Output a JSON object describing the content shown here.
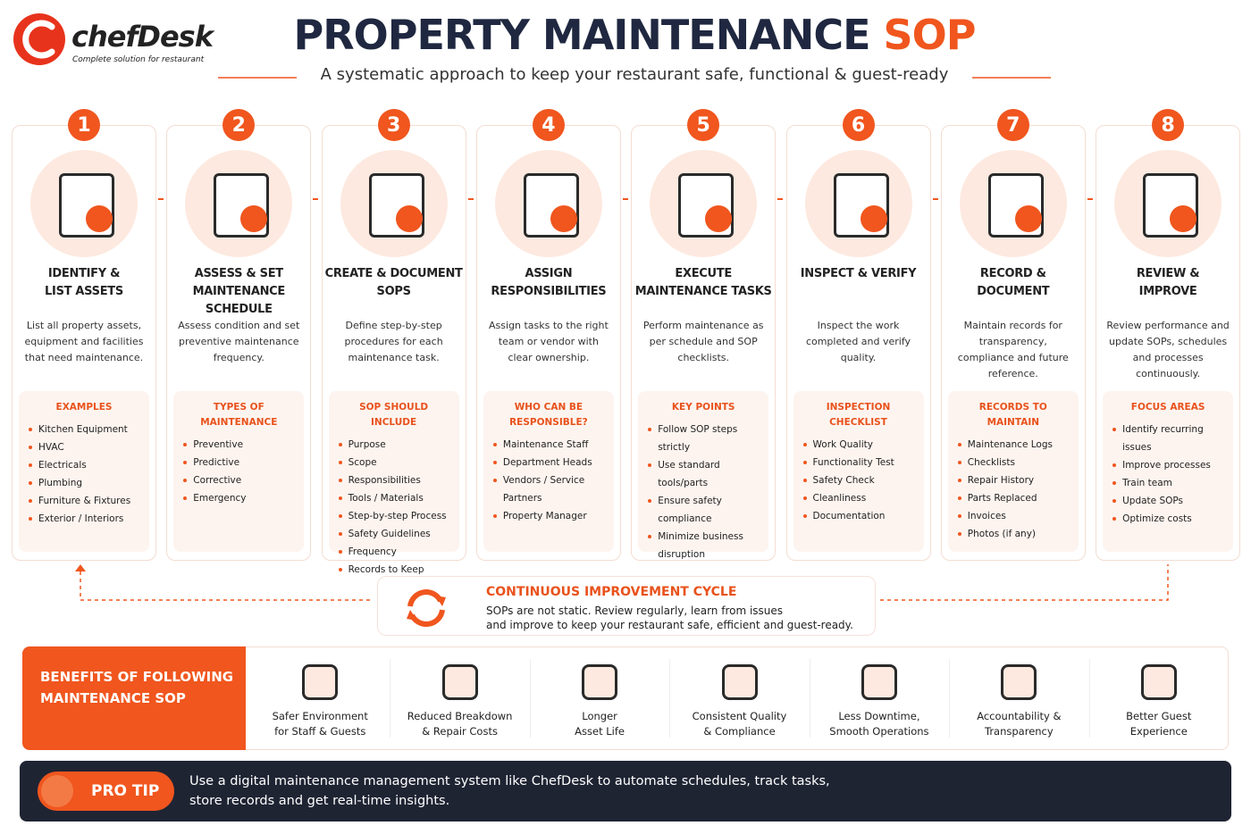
{
  "header": {
    "brand": "chefDesk",
    "tagline": "Complete solution for restaurant",
    "title": "PROPERTY MAINTENANCE",
    "title_accent": "SOP",
    "subtitle": "A systematic approach to keep your restaurant safe, functional & guest-ready"
  },
  "steps": [
    {
      "number": 1,
      "title": [
        "IDENTIFY &",
        "LIST ASSETS"
      ],
      "description": "List all property assets, equipment and facilities that need maintenance.",
      "box_title": "EXAMPLES",
      "items": [
        "Kitchen Equipment",
        "HVAC",
        "Electricals",
        "Plumbing",
        "Furniture & Fixtures",
        "Exterior / Interiors"
      ]
    },
    {
      "number": 2,
      "title": [
        "ASSESS & SET",
        "MAINTENANCE SCHEDULE"
      ],
      "description": "Assess condition and set preventive maintenance frequency.",
      "box_title": "TYPES OF MAINTENANCE",
      "items": [
        "Preventive",
        "Predictive",
        "Corrective",
        "Emergency"
      ]
    },
    {
      "number": 3,
      "title": [
        "CREATE & DOCUMENT",
        "SOPS"
      ],
      "description": "Define step-by-step procedures for each maintenance task.",
      "box_title": "SOP SHOULD INCLUDE",
      "items": [
        "Purpose",
        "Scope",
        "Responsibilities",
        "Tools / Materials",
        "Step-by-step Process",
        "Safety Guidelines",
        "Frequency",
        "Records to Keep"
      ]
    },
    {
      "number": 4,
      "title": [
        "ASSIGN",
        "RESPONSIBILITIES"
      ],
      "description": "Assign tasks to the right team or vendor with clear ownership.",
      "box_title": "WHO CAN BE RESPONSIBLE?",
      "items": [
        "Maintenance Staff",
        "Department Heads",
        "Vendors / Service Partners",
        "Property Manager"
      ]
    },
    {
      "number": 5,
      "title": [
        "EXECUTE",
        "MAINTENANCE TASKS"
      ],
      "description": "Perform maintenance as per schedule and SOP checklists.",
      "box_title": "KEY POINTS",
      "items": [
        "Follow SOP steps strictly",
        "Use standard tools/parts",
        "Ensure safety compliance",
        "Minimize business disruption"
      ]
    },
    {
      "number": 6,
      "title": [
        "INSPECT & VERIFY"
      ],
      "description": "Inspect the work completed and verify quality.",
      "box_title": "INSPECTION CHECKLIST",
      "items": [
        "Work Quality",
        "Functionality Test",
        "Safety Check",
        "Cleanliness",
        "Documentation"
      ]
    },
    {
      "number": 7,
      "title": [
        "RECORD &",
        "DOCUMENT"
      ],
      "description": "Maintain records for transparency, compliance and future reference.",
      "box_title": "RECORDS TO MAINTAIN",
      "items": [
        "Maintenance Logs",
        "Checklists",
        "Repair History",
        "Parts Replaced",
        "Invoices",
        "Photos (if any)"
      ]
    },
    {
      "number": 8,
      "title": [
        "REVIEW &",
        "IMPROVE"
      ],
      "description": "Review performance and update SOPs, schedules and processes continuously.",
      "box_title": "FOCUS AREAS",
      "items": [
        "Identify recurring issues",
        "Improve processes",
        "Train team",
        "Update SOPs",
        "Optimize costs"
      ]
    }
  ],
  "cycle": {
    "title": "CONTINUOUS IMPROVEMENT CYCLE",
    "text": [
      "SOPs are not static. Review regularly, learn from issues",
      "and improve to keep your restaurant safe, efficient and guest-ready."
    ]
  },
  "benefits": {
    "title": [
      "BENEFITS OF FOLLOWING",
      "MAINTENANCE SOP"
    ],
    "items": [
      [
        "Safer Environment",
        "for Staff & Guests"
      ],
      [
        "Reduced Breakdown",
        "& Repair Costs"
      ],
      [
        "Longer",
        "Asset Life"
      ],
      [
        "Consistent Quality",
        "& Compliance"
      ],
      [
        "Less Downtime,",
        "Smooth Operations"
      ],
      [
        "Accountability &",
        "Transparency"
      ],
      [
        "Better Guest",
        "Experience"
      ]
    ]
  },
  "pro_tip": {
    "label": "PRO TIP",
    "text": [
      "Use a digital maintenance management system like ChefDesk to automate schedules, track tasks,",
      "store records and get real-time insights."
    ]
  }
}
